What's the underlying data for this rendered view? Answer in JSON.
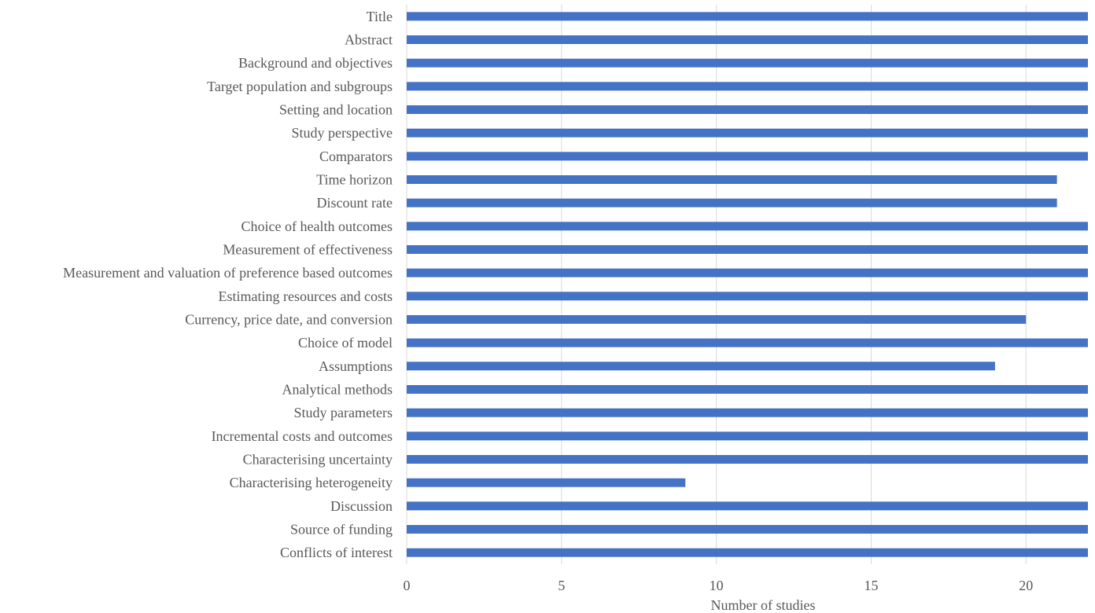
{
  "chart_data": {
    "type": "bar",
    "orientation": "horizontal",
    "categories": [
      "Title",
      "Abstract",
      "Background and objectives",
      "Target population and subgroups",
      "Setting and location",
      "Study perspective",
      "Comparators",
      "Time horizon",
      "Discount rate",
      "Choice of health outcomes",
      "Measurement of effectiveness",
      "Measurement and valuation of preference based outcomes",
      "Estimating resources and costs",
      "Currency, price date, and conversion",
      "Choice of model",
      "Assumptions",
      "Analytical methods",
      "Study parameters",
      "Incremental costs and outcomes",
      "Characterising uncertainty",
      "Characterising heterogeneity",
      "Discussion",
      "Source of funding",
      "Conflicts of interest"
    ],
    "values": [
      22,
      22,
      22,
      22,
      22,
      22,
      22,
      21,
      21,
      22,
      22,
      22,
      22,
      20,
      22,
      19,
      22,
      22,
      22,
      22,
      9,
      22,
      22,
      22
    ],
    "xlabel": "Number of studies",
    "ylabel": "",
    "xlim": [
      0,
      22
    ],
    "xticks": [
      "0",
      "5",
      "10",
      "15",
      "20"
    ],
    "xtick_values": [
      0,
      5,
      10,
      15,
      20
    ],
    "bar_color": "#4472c4",
    "grid": "vertical",
    "legend": "none"
  }
}
